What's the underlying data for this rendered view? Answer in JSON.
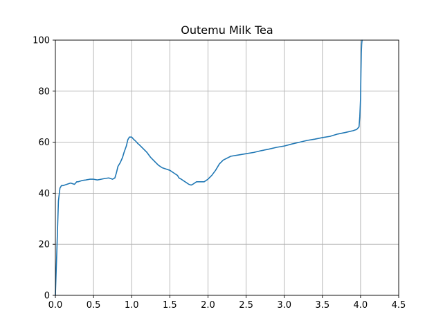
{
  "chart_data": {
    "type": "line",
    "title": "Outemu Milk Tea",
    "xlabel": "",
    "ylabel": "",
    "xlim": [
      0,
      4.5
    ],
    "ylim": [
      0,
      100
    ],
    "x_ticks": [
      0.0,
      0.5,
      1.0,
      1.5,
      2.0,
      2.5,
      3.0,
      3.5,
      4.0,
      4.5
    ],
    "x_tick_labels": [
      "0.0",
      "0.5",
      "1.0",
      "1.5",
      "2.0",
      "2.5",
      "3.0",
      "3.5",
      "4.0",
      "4.5"
    ],
    "y_ticks": [
      0,
      20,
      40,
      60,
      80,
      100
    ],
    "y_tick_labels": [
      "0",
      "20",
      "40",
      "60",
      "80",
      "100"
    ],
    "grid": true,
    "series": [
      {
        "color": "#1f77b4",
        "x": [
          0.0,
          0.02,
          0.04,
          0.06,
          0.08,
          0.1,
          0.15,
          0.2,
          0.25,
          0.28,
          0.3,
          0.35,
          0.4,
          0.45,
          0.5,
          0.55,
          0.6,
          0.65,
          0.7,
          0.75,
          0.78,
          0.8,
          0.82,
          0.85,
          0.88,
          0.9,
          0.93,
          0.95,
          0.97,
          1.0,
          1.03,
          1.05,
          1.08,
          1.1,
          1.15,
          1.2,
          1.25,
          1.3,
          1.35,
          1.4,
          1.45,
          1.5,
          1.55,
          1.6,
          1.62,
          1.65,
          1.7,
          1.75,
          1.78,
          1.8,
          1.85,
          1.9,
          1.95,
          2.0,
          2.05,
          2.1,
          2.15,
          2.2,
          2.3,
          2.4,
          2.5,
          2.6,
          2.7,
          2.8,
          2.9,
          3.0,
          3.1,
          3.2,
          3.3,
          3.4,
          3.5,
          3.6,
          3.7,
          3.8,
          3.9,
          3.95,
          3.98,
          3.99,
          4.0,
          4.005,
          4.01,
          4.015,
          4.02
        ],
        "y": [
          0,
          18,
          37,
          42,
          43,
          43,
          43.5,
          44,
          43.5,
          44.5,
          44.5,
          45,
          45.2,
          45.5,
          45.5,
          45.2,
          45.5,
          45.8,
          46,
          45.5,
          46,
          48,
          50.5,
          52,
          54,
          56,
          58.5,
          61,
          62,
          62,
          61,
          60.5,
          59.5,
          59,
          57.5,
          56,
          54,
          52.5,
          51,
          50,
          49.5,
          49,
          48,
          47,
          46,
          45.5,
          44.5,
          43.5,
          43.2,
          43.5,
          44.5,
          44.5,
          44.5,
          45.5,
          47,
          49,
          51.5,
          53,
          54.5,
          55,
          55.5,
          56,
          56.7,
          57.3,
          58,
          58.5,
          59.3,
          60,
          60.7,
          61.2,
          61.8,
          62.3,
          63.2,
          63.8,
          64.5,
          65,
          66,
          70,
          77,
          87,
          95,
          98.5,
          100
        ]
      }
    ]
  }
}
